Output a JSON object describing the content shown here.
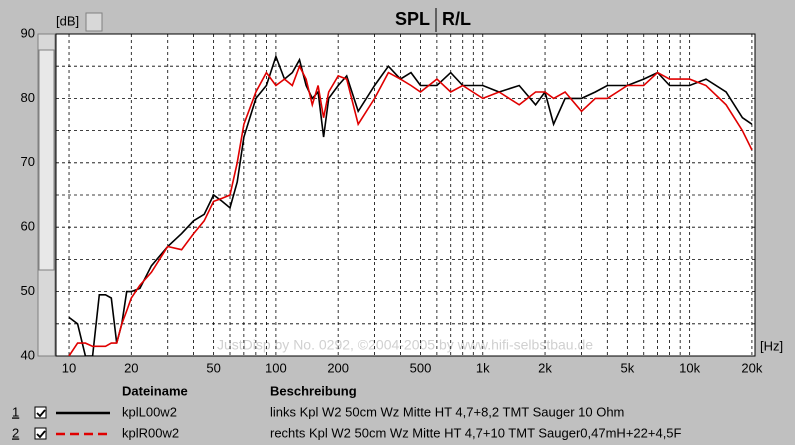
{
  "chart_data": {
    "type": "line",
    "title": "SPL",
    "subtitle": "R/L",
    "y_label": "[dB]",
    "x_label": "[Hz]",
    "watermark": "JustDisp by No. 0292, ©2004-2005 by www.hifi-selbstbau.de",
    "log_x": true,
    "grid": true,
    "xlim": [
      8.65,
      20700
    ],
    "ylim": [
      40,
      90
    ],
    "xticks": [
      10,
      20,
      50,
      100,
      200,
      500,
      {
        "value": 1000,
        "label": "1k"
      },
      {
        "value": 2000,
        "label": "2k"
      },
      {
        "value": 5000,
        "label": "5k"
      },
      {
        "value": 10000,
        "label": "10k"
      },
      {
        "value": 20000,
        "label": "20k"
      }
    ],
    "xminor": [
      30,
      40,
      60,
      70,
      80,
      90,
      300,
      400,
      600,
      700,
      800,
      900,
      3000,
      4000,
      6000,
      7000,
      8000,
      9000
    ],
    "yticks": [
      40,
      50,
      60,
      70,
      80,
      90
    ],
    "yminor": [
      45,
      55,
      65,
      75,
      85
    ],
    "legend_header": [
      "Dateiname",
      "Beschreibung"
    ],
    "x": [
      10,
      11,
      12,
      13,
      14,
      15,
      16,
      17,
      18,
      19,
      20,
      22,
      25,
      30,
      35,
      40,
      45,
      50,
      55,
      60,
      65,
      70,
      80,
      90,
      100,
      110,
      120,
      130,
      140,
      150,
      160,
      170,
      180,
      200,
      220,
      250,
      300,
      350,
      400,
      450,
      500,
      600,
      700,
      800,
      1000,
      1200,
      1500,
      1800,
      2000,
      2200,
      2500,
      3000,
      3500,
      4000,
      5000,
      6000,
      7000,
      8000,
      10000,
      12000,
      15000,
      18000,
      20000
    ],
    "series": [
      {
        "index": "1",
        "name": "kplL00w2",
        "description": "links Kpl W2 50cm Wz Mitte HT 4,7+8,2 TMT Sauger 10 Ohm",
        "color": "#000000",
        "dash": false,
        "values": [
          46,
          45,
          40,
          40,
          49.5,
          49.5,
          49,
          42,
          45,
          50,
          50,
          50.5,
          54,
          57,
          59,
          61,
          62,
          65,
          64,
          63,
          67,
          74,
          80,
          82,
          86.5,
          83,
          84,
          86,
          82,
          80,
          81,
          74,
          80,
          82,
          83.5,
          78,
          82,
          85,
          83,
          84,
          82,
          82,
          84,
          82,
          82,
          81,
          82,
          79,
          81,
          76,
          80,
          80,
          81,
          82,
          82,
          83,
          84,
          82,
          82,
          83,
          81,
          77,
          76
        ]
      },
      {
        "index": "2",
        "name": "kplR00w2",
        "description": "rechts Kpl W2 50cm Wz Mitte HT 4,7+10 TMT Sauger0,47mH+22+4,5F",
        "color": "#e00000",
        "dash": true,
        "values": [
          40,
          42,
          42,
          41.5,
          41.5,
          41.5,
          42,
          42,
          45,
          47,
          49,
          51,
          53,
          57,
          56.5,
          59,
          61,
          64,
          64.5,
          65,
          70,
          76,
          81,
          84,
          82,
          83,
          82,
          85,
          83,
          79,
          82,
          77,
          81,
          83.5,
          83,
          76,
          80,
          84,
          83,
          82,
          81,
          83,
          81,
          82,
          80,
          81,
          79,
          81,
          81,
          80,
          81,
          78,
          80,
          80,
          82,
          82,
          84,
          83,
          83,
          82,
          79,
          75,
          72
        ]
      }
    ]
  }
}
